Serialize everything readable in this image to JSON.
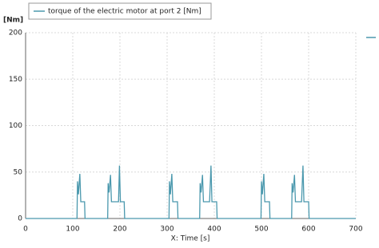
{
  "chart_data": {
    "type": "line",
    "y_label": "[Nm]",
    "x_label": "X: Time [s]",
    "xlim": [
      0,
      700
    ],
    "ylim": [
      0,
      200
    ],
    "xticks": [
      0,
      100,
      200,
      300,
      400,
      500,
      600,
      700
    ],
    "yticks": [
      0,
      50,
      100,
      150,
      200
    ],
    "grid": true,
    "x": [
      0,
      109,
      110,
      112,
      115,
      117,
      125,
      126,
      174,
      175,
      177,
      180,
      182,
      197,
      199,
      201,
      209,
      210,
      304,
      305,
      307,
      310,
      312,
      322,
      323,
      369,
      370,
      372,
      375,
      377,
      390,
      393,
      395,
      405,
      406,
      499,
      500,
      502,
      505,
      507,
      517,
      518,
      564,
      565,
      567,
      570,
      572,
      585,
      588,
      590,
      600,
      601,
      700
    ],
    "series": [
      {
        "name": "torque of the electric motor  at port 2 [Nm]",
        "color": "#4a98ad",
        "values": [
          0,
          0,
          40,
          26,
          48,
          18,
          18,
          0,
          0,
          38,
          28,
          47,
          18,
          18,
          57,
          18,
          18,
          0,
          0,
          40,
          26,
          48,
          18,
          18,
          0,
          0,
          38,
          28,
          47,
          18,
          18,
          57,
          18,
          18,
          0,
          0,
          40,
          26,
          48,
          18,
          18,
          0,
          0,
          38,
          28,
          47,
          18,
          18,
          57,
          18,
          18,
          0,
          0
        ]
      }
    ]
  }
}
